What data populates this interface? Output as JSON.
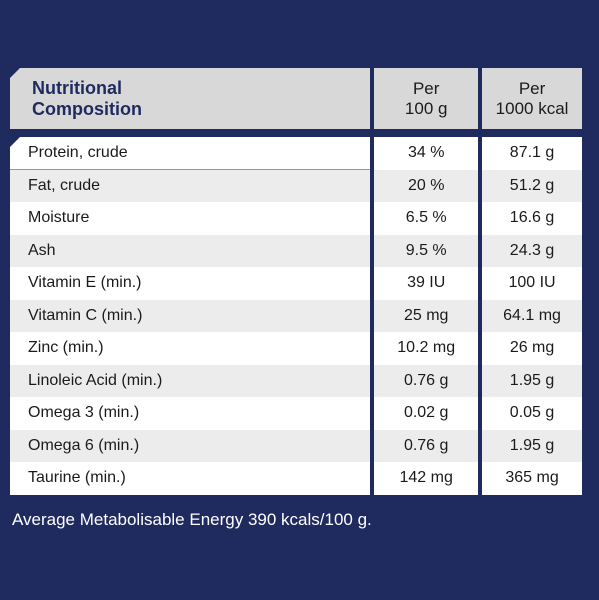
{
  "header": {
    "title_line1": "Nutritional",
    "title_line2": "Composition",
    "col2_line1": "Per",
    "col2_line2": "100 g",
    "col3_line1": "Per",
    "col3_line2": "1000 kcal"
  },
  "rows": [
    {
      "name": "Protein, crude",
      "per100g": "34 %",
      "per1000kcal": "87.1 g"
    },
    {
      "name": "Fat, crude",
      "per100g": "20 %",
      "per1000kcal": "51.2 g"
    },
    {
      "name": "Moisture",
      "per100g": "6.5 %",
      "per1000kcal": "16.6 g"
    },
    {
      "name": "Ash",
      "per100g": "9.5 %",
      "per1000kcal": "24.3 g"
    },
    {
      "name": "Vitamin E (min.)",
      "per100g": "39 IU",
      "per1000kcal": "100 IU"
    },
    {
      "name": "Vitamin C (min.)",
      "per100g": "25 mg",
      "per1000kcal": "64.1 mg"
    },
    {
      "name": "Zinc (min.)",
      "per100g": "10.2 mg",
      "per1000kcal": "26 mg"
    },
    {
      "name": "Linoleic Acid (min.)",
      "per100g": "0.76 g",
      "per1000kcal": "1.95 g"
    },
    {
      "name": "Omega 3 (min.)",
      "per100g": "0.02 g",
      "per1000kcal": "0.05 g"
    },
    {
      "name": "Omega 6 (min.)",
      "per100g": "0.76 g",
      "per1000kcal": "1.95 g"
    },
    {
      "name": "Taurine (min.)",
      "per100g": "142 mg",
      "per1000kcal": "365 mg"
    }
  ],
  "footer": "Average Metabolisable Energy 390 kcals/100 g.",
  "colors": {
    "background": "#1f2a5e",
    "header": "#d8d8d8",
    "row_alt": "#ececec"
  }
}
